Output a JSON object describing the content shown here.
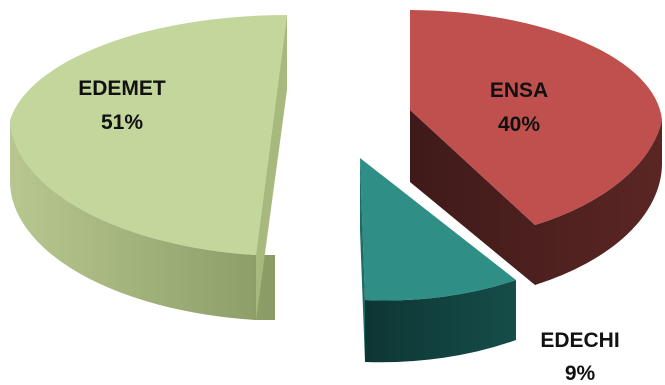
{
  "chart_data": {
    "type": "pie",
    "exploded": true,
    "three_d": true,
    "slices": [
      {
        "label": "EDEMET",
        "value": 51,
        "value_label": "51%",
        "color": "#c3d69b",
        "side_color": "#8f9f6a"
      },
      {
        "label": "ENSA",
        "value": 40,
        "value_label": "40%",
        "color": "#c0504d",
        "side_color": "#4b1f1e"
      },
      {
        "label": "EDECHI",
        "value": 9,
        "value_label": "9%",
        "color": "#2f8f87",
        "side_color": "#0f3f3c"
      }
    ]
  }
}
